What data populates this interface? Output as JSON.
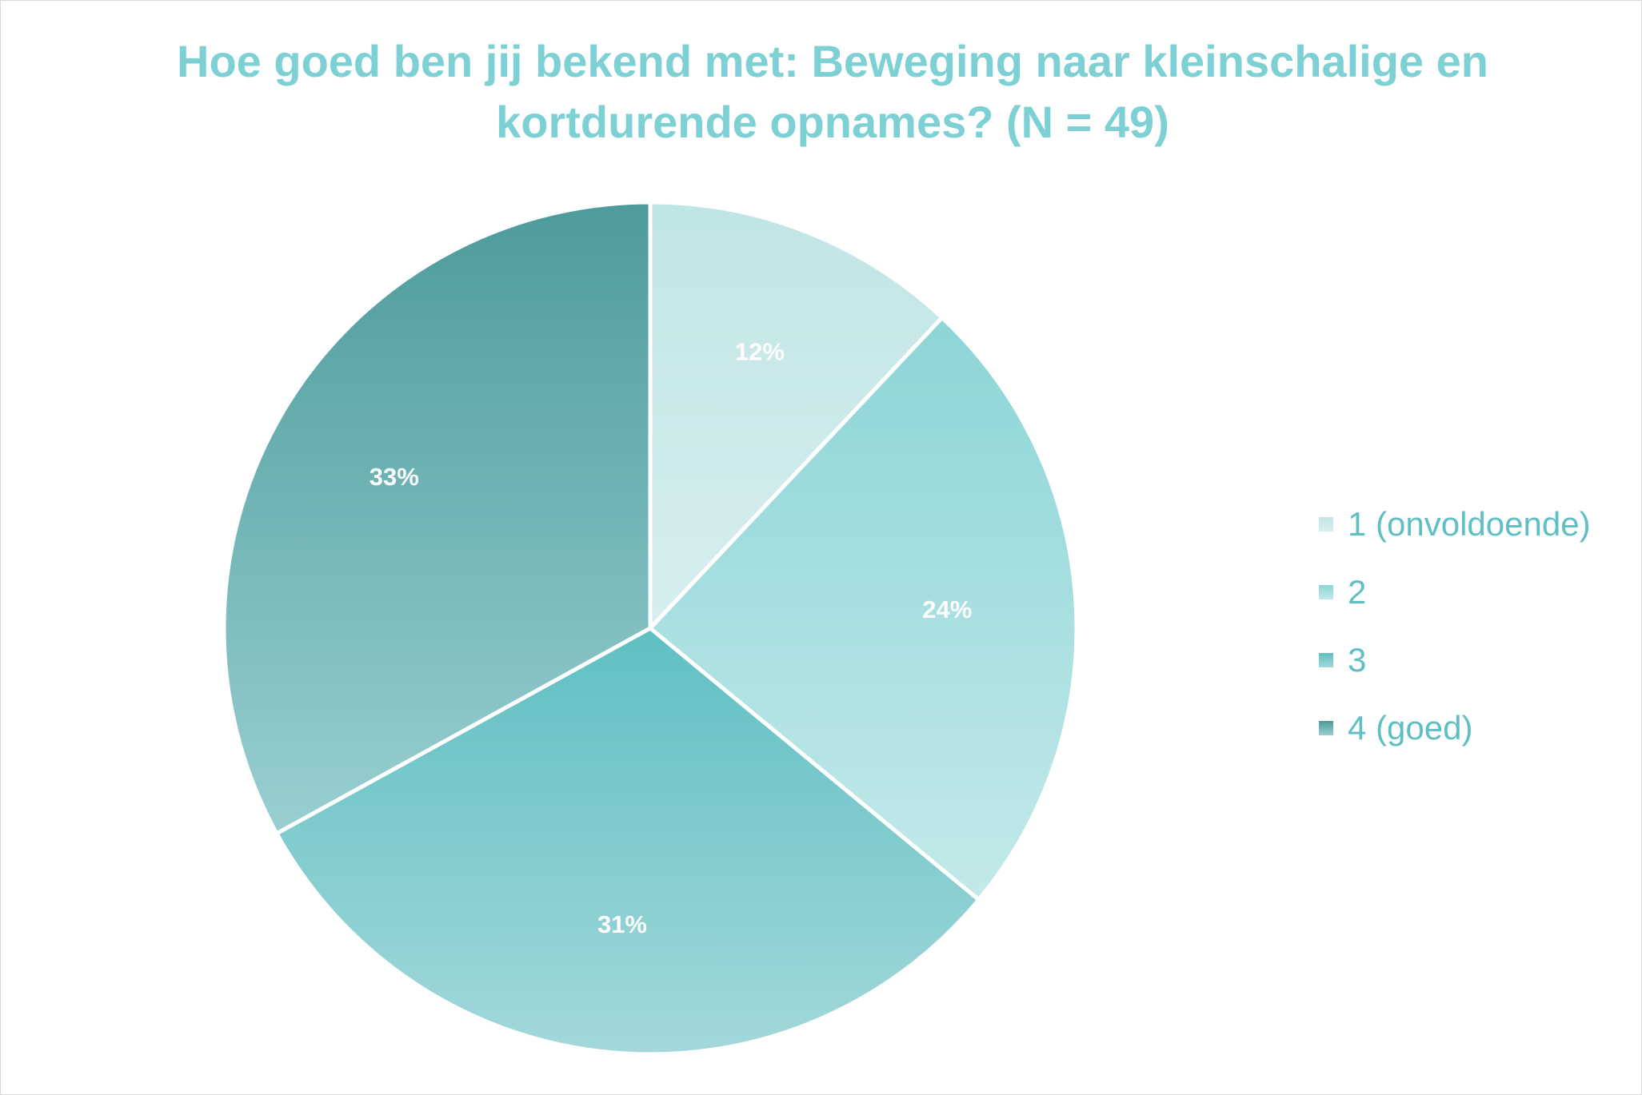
{
  "chart_data": {
    "type": "pie",
    "title": "Hoe goed ben jij bekend met: Beweging naar kleinschalige en kortdurende opnames? (N = 49)",
    "title_lines": [
      "Hoe goed ben jij bekend met: Beweging naar kleinschalige en",
      "kortdurende opnames? (N = 49)"
    ],
    "categories": [
      "1 (onvoldoende)",
      "2",
      "3",
      "4 (goed)"
    ],
    "values": [
      12,
      24,
      31,
      33
    ],
    "labels": [
      "12%",
      "24%",
      "31%",
      "33%"
    ],
    "legend_position": "right",
    "colors": {
      "title": "#7dd0d4",
      "legend_text": "#5fbfc4",
      "data_label": "#ffffff",
      "slice_border": "#ffffff"
    },
    "slice_gradients": [
      [
        "#c0e5e5",
        "#d8eef0"
      ],
      [
        "#8dd5d6",
        "#c3e9ea"
      ],
      [
        "#5fbfc2",
        "#a3d8da"
      ],
      [
        "#4d9b9c",
        "#99cfd0"
      ]
    ]
  }
}
